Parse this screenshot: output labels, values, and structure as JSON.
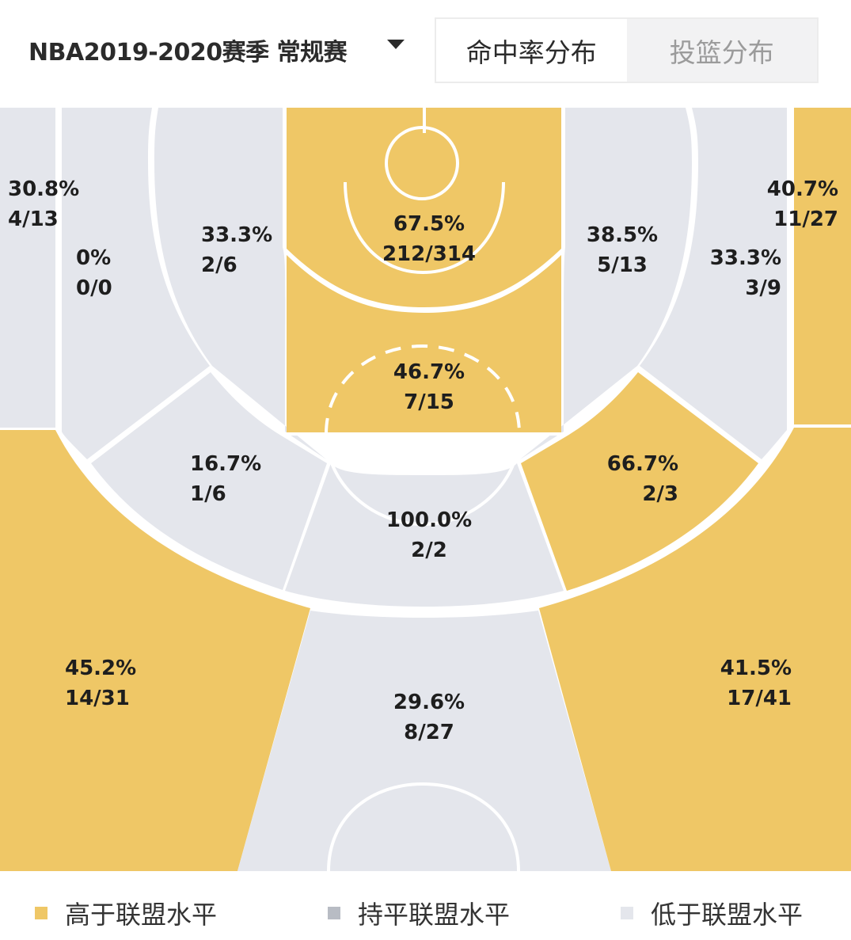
{
  "header": {
    "season_label": "NBA2019-2020赛季 常规赛",
    "tabs": [
      {
        "label": "命中率分布",
        "active": true
      },
      {
        "label": "投篮分布",
        "active": false
      }
    ]
  },
  "colors": {
    "above": "#efc766",
    "even": "#b8bcc4",
    "below": "#e4e6ec",
    "line": "#ffffff"
  },
  "zones": [
    {
      "id": "left-corner",
      "pct": "30.8%",
      "frac": "4/13",
      "level": "below"
    },
    {
      "id": "left-baseline-mid",
      "pct": "0%",
      "frac": "0/0",
      "level": "below"
    },
    {
      "id": "left-mid",
      "pct": "33.3%",
      "frac": "2/6",
      "level": "below"
    },
    {
      "id": "restricted",
      "pct": "67.5%",
      "frac": "212/314",
      "level": "above"
    },
    {
      "id": "right-mid",
      "pct": "38.5%",
      "frac": "5/13",
      "level": "below"
    },
    {
      "id": "right-baseline-mid",
      "pct": "33.3%",
      "frac": "3/9",
      "level": "below"
    },
    {
      "id": "right-corner",
      "pct": "40.7%",
      "frac": "11/27",
      "level": "above"
    },
    {
      "id": "paint",
      "pct": "46.7%",
      "frac": "7/15",
      "level": "above"
    },
    {
      "id": "left-elbow",
      "pct": "16.7%",
      "frac": "1/6",
      "level": "below"
    },
    {
      "id": "top-key",
      "pct": "100.0%",
      "frac": "2/2",
      "level": "below"
    },
    {
      "id": "right-elbow",
      "pct": "66.7%",
      "frac": "2/3",
      "level": "above"
    },
    {
      "id": "left-wing-three",
      "pct": "45.2%",
      "frac": "14/31",
      "level": "above"
    },
    {
      "id": "top-three",
      "pct": "29.6%",
      "frac": "8/27",
      "level": "below"
    },
    {
      "id": "right-wing-three",
      "pct": "41.5%",
      "frac": "17/41",
      "level": "above"
    }
  ],
  "legend": [
    {
      "label": "高于联盟水平",
      "color": "#efc766"
    },
    {
      "label": "持平联盟水平",
      "color": "#b8bcc4"
    },
    {
      "label": "低于联盟水平",
      "color": "#e4e6ec"
    }
  ]
}
